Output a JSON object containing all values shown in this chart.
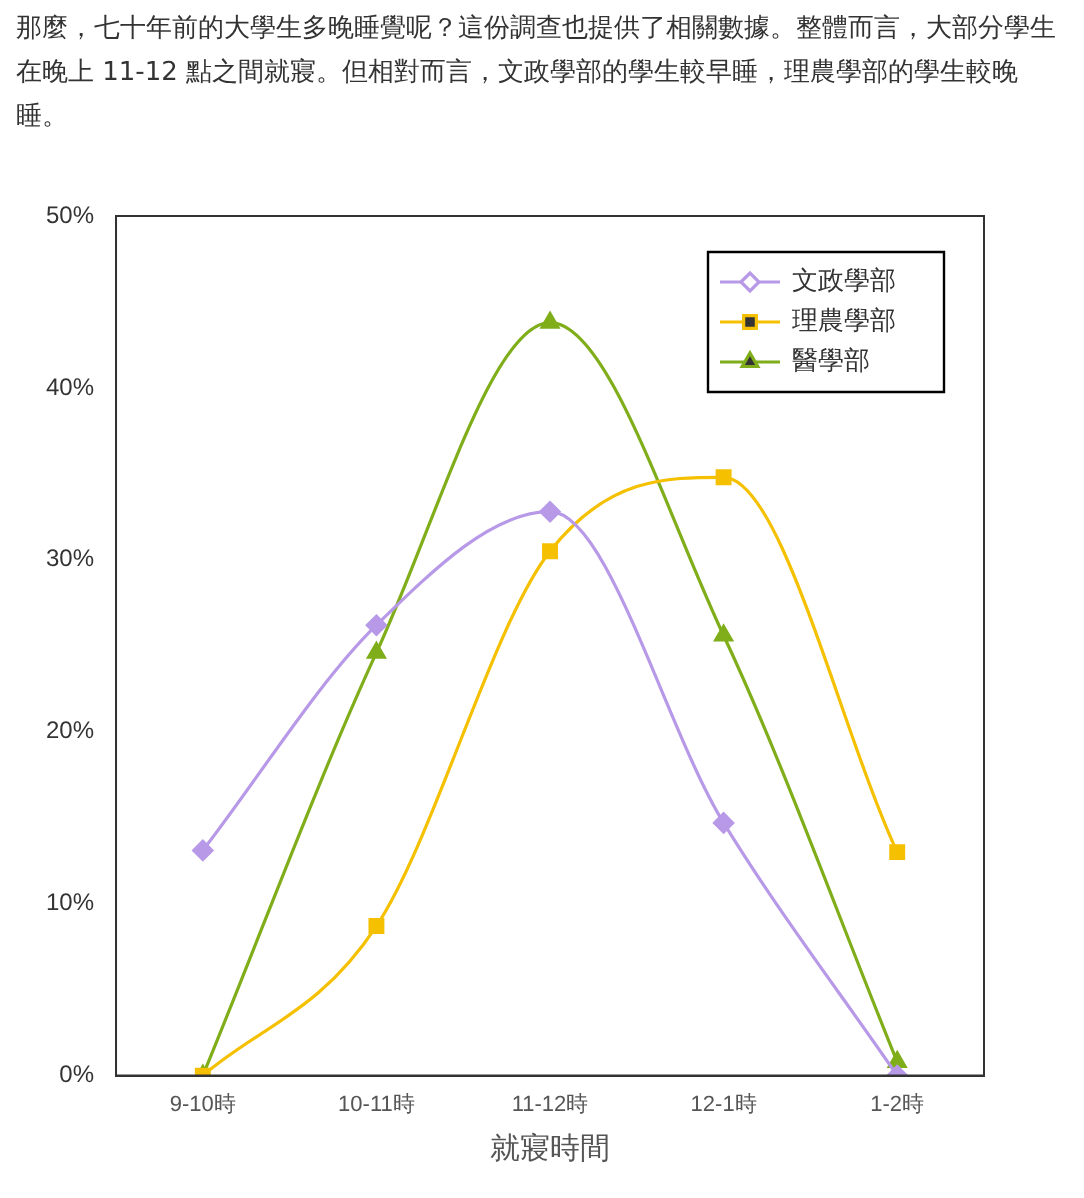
{
  "chart_data": {
    "type": "line",
    "subtitle": "那麼，七十年前的大學生多晚睡覺呢？這份調查也提供了相關數據。整體而言，大部分學生在晚上 11-12 點之間就寢。但相對而言，文政學部的學生較早睡，理農學部的學生較晚睡。",
    "xlabel": "就寢時間",
    "categories": [
      "9-10時",
      "10-11時",
      "11-12時",
      "12-1時",
      "1-2時"
    ],
    "series": [
      {
        "name": "文政學部",
        "color": "#b799e8",
        "marker": "diamond",
        "values": [
          13.1,
          26.2,
          32.8,
          14.7,
          0
        ]
      },
      {
        "name": "理農學部",
        "color": "#f5c000",
        "marker": "square",
        "values": [
          0,
          8.7,
          30.5,
          34.8,
          13.0
        ]
      },
      {
        "name": "醫學部",
        "color": "#7fae1a",
        "marker": "triangle",
        "values": [
          0,
          24.6,
          43.8,
          25.6,
          0.8
        ]
      }
    ],
    "ylim": [
      0,
      50
    ],
    "yticks": [
      {
        "value": 0,
        "label": "0%"
      },
      {
        "value": 10,
        "label": "10%"
      },
      {
        "value": 20,
        "label": "20%"
      },
      {
        "value": 30,
        "label": "30%"
      },
      {
        "value": 40,
        "label": "40%"
      },
      {
        "value": 50,
        "label": "50%"
      }
    ],
    "grid": false,
    "legend": "top right",
    "line_style": "solid"
  }
}
